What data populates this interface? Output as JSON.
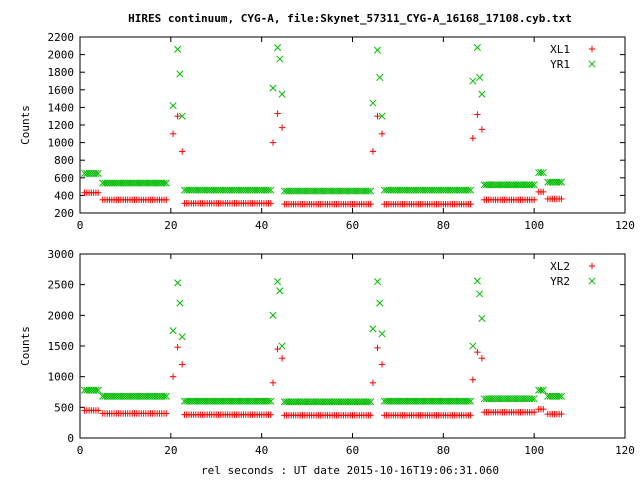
{
  "title": "HIRES continuum, CYG-A, file:Skynet_57311_CYG-A_16168_17108.cyb.txt",
  "xlabel_bottom": "rel seconds : UT date 2015-10-16T19:06:31.060",
  "colors": {
    "red": "#ff0000",
    "green": "#00bb00",
    "axis": "#000000",
    "grid": "#999999"
  },
  "chart_data": [
    {
      "type": "scatter",
      "xlabel": "",
      "ylabel": "Counts",
      "xlim": [
        0,
        120
      ],
      "ylim": [
        200,
        2200
      ],
      "x_ticks": [
        0,
        20,
        40,
        60,
        80,
        100,
        120
      ],
      "y_ticks": [
        200,
        400,
        600,
        800,
        1000,
        1200,
        1400,
        1600,
        1800,
        2000,
        2200
      ],
      "grid": false,
      "legend_position": "top-right",
      "series": [
        {
          "name": "XL1",
          "marker": "plus",
          "color": "#ff0000",
          "baseline_segments": [
            [
              1,
              4,
              430
            ],
            [
              5,
              19,
              350
            ],
            [
              23,
              42,
              310
            ],
            [
              45,
              64,
              300
            ],
            [
              67,
              86,
              300
            ],
            [
              89,
              100,
              350
            ],
            [
              101,
              102,
              440
            ],
            [
              103,
              106,
              360
            ]
          ],
          "peaks": [
            [
              20.5,
              1100
            ],
            [
              21.5,
              1300
            ],
            [
              22.5,
              900
            ],
            [
              42.5,
              1000
            ],
            [
              43.5,
              1330
            ],
            [
              44.5,
              1170
            ],
            [
              64.5,
              900
            ],
            [
              65.5,
              1300
            ],
            [
              66.5,
              1100
            ],
            [
              86.5,
              1050
            ],
            [
              87.5,
              1320
            ],
            [
              88.5,
              1150
            ]
          ]
        },
        {
          "name": "YR1",
          "marker": "x",
          "color": "#00bb00",
          "baseline_segments": [
            [
              1,
              4,
              650
            ],
            [
              5,
              19,
              540
            ],
            [
              23,
              42,
              460
            ],
            [
              45,
              64,
              450
            ],
            [
              67,
              86,
              460
            ],
            [
              89,
              100,
              520
            ],
            [
              101,
              102,
              660
            ],
            [
              103,
              106,
              550
            ]
          ],
          "peaks": [
            [
              20.5,
              1420
            ],
            [
              21.5,
              2060
            ],
            [
              22,
              1780
            ],
            [
              22.5,
              1300
            ],
            [
              42.5,
              1620
            ],
            [
              43.5,
              2080
            ],
            [
              44,
              1950
            ],
            [
              44.5,
              1550
            ],
            [
              64.5,
              1450
            ],
            [
              65.5,
              2050
            ],
            [
              66,
              1740
            ],
            [
              66.5,
              1300
            ],
            [
              86.5,
              1700
            ],
            [
              87.5,
              2080
            ],
            [
              88,
              1740
            ],
            [
              88.5,
              1550
            ]
          ]
        }
      ]
    },
    {
      "type": "scatter",
      "xlabel": "rel seconds : UT date 2015-10-16T19:06:31.060",
      "ylabel": "Counts",
      "xlim": [
        0,
        120
      ],
      "ylim": [
        0,
        3000
      ],
      "x_ticks": [
        0,
        20,
        40,
        60,
        80,
        100,
        120
      ],
      "y_ticks": [
        0,
        500,
        1000,
        1500,
        2000,
        2500,
        3000
      ],
      "grid": false,
      "legend_position": "top-right",
      "series": [
        {
          "name": "XL2",
          "marker": "plus",
          "color": "#ff0000",
          "baseline_segments": [
            [
              1,
              4,
              450
            ],
            [
              5,
              19,
              400
            ],
            [
              23,
              42,
              380
            ],
            [
              45,
              64,
              370
            ],
            [
              67,
              86,
              370
            ],
            [
              89,
              100,
              420
            ],
            [
              101,
              102,
              470
            ],
            [
              103,
              106,
              390
            ]
          ],
          "peaks": [
            [
              20.5,
              1000
            ],
            [
              21.5,
              1480
            ],
            [
              22.5,
              1200
            ],
            [
              42.5,
              900
            ],
            [
              43.5,
              1450
            ],
            [
              44.5,
              1300
            ],
            [
              64.5,
              900
            ],
            [
              65.5,
              1470
            ],
            [
              66.5,
              1200
            ],
            [
              86.5,
              950
            ],
            [
              87.5,
              1400
            ],
            [
              88.5,
              1300
            ]
          ]
        },
        {
          "name": "YR2",
          "marker": "x",
          "color": "#00bb00",
          "baseline_segments": [
            [
              1,
              4,
              780
            ],
            [
              5,
              19,
              680
            ],
            [
              23,
              42,
              600
            ],
            [
              45,
              64,
              590
            ],
            [
              67,
              86,
              600
            ],
            [
              89,
              100,
              640
            ],
            [
              101,
              102,
              780
            ],
            [
              103,
              106,
              680
            ]
          ],
          "peaks": [
            [
              20.5,
              1750
            ],
            [
              21.5,
              2530
            ],
            [
              22,
              2200
            ],
            [
              22.5,
              1650
            ],
            [
              42.5,
              2000
            ],
            [
              43.5,
              2550
            ],
            [
              44,
              2400
            ],
            [
              44.5,
              1500
            ],
            [
              64.5,
              1780
            ],
            [
              65.5,
              2550
            ],
            [
              66,
              2200
            ],
            [
              66.5,
              1700
            ],
            [
              86.5,
              1500
            ],
            [
              87.5,
              2560
            ],
            [
              88,
              2350
            ],
            [
              88.5,
              1950
            ]
          ]
        }
      ]
    }
  ]
}
